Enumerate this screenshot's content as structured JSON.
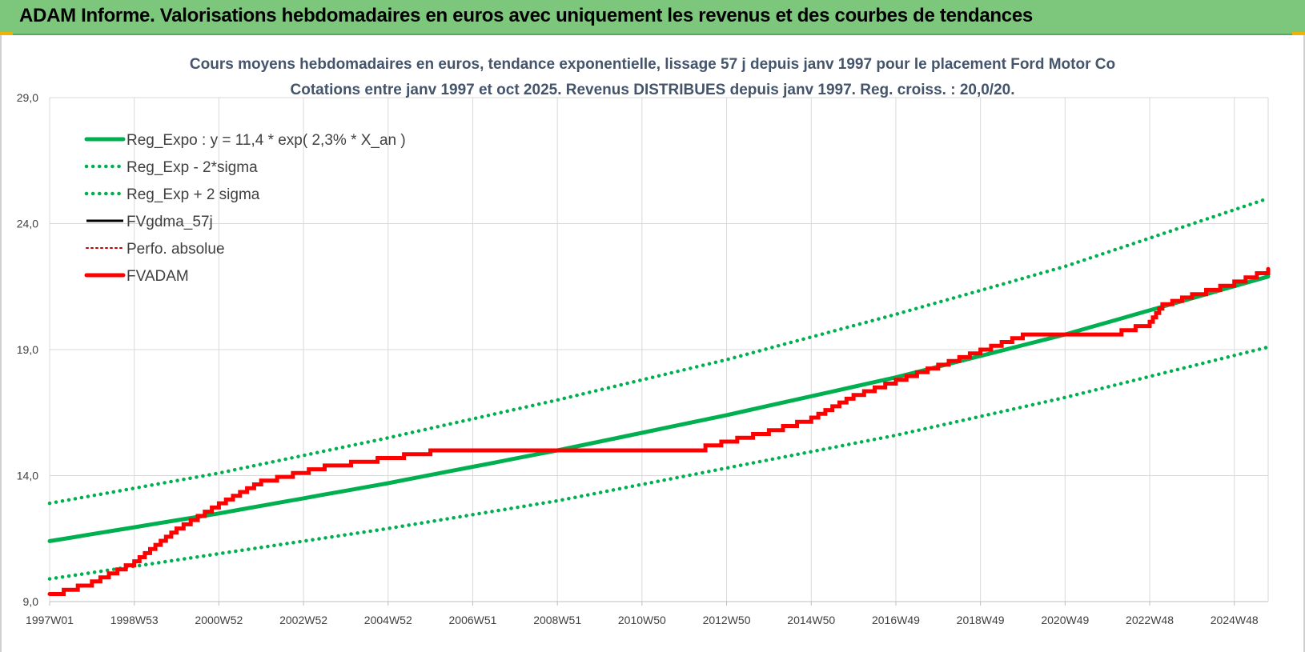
{
  "banner": {
    "title": "ADAM Informe. Valorisations hebdomadaires en euros avec uniquement les revenus et des courbes de tendances"
  },
  "colors": {
    "banner": "#7dc77d",
    "green": "#00b050",
    "red": "#ff0000",
    "black": "#000000",
    "grid": "#d9d9d9"
  },
  "chart_data": {
    "type": "line",
    "title": "Cours moyens hebdomadaires en euros, tendance exponentielle, lissage 57 j depuis janv 1997 pour le placement Ford Motor Co",
    "subtitle": "Cotations entre janv 1997 et oct 2025. Revenus DISTRIBUES depuis janv 1997.  Reg. croiss. : 20,0/20.",
    "xlabel": "",
    "ylabel": "",
    "x_ticks": [
      "1997W01",
      "1998W53",
      "2000W52",
      "2002W52",
      "2004W52",
      "2006W51",
      "2008W51",
      "2010W50",
      "2012W50",
      "2014W50",
      "2016W49",
      "2018W49",
      "2020W49",
      "2022W48",
      "2024W48"
    ],
    "y_ticks": [
      "9,0",
      "14,0",
      "19,0",
      "24,0",
      "29,0"
    ],
    "xlim": [
      1997.0,
      2025.8
    ],
    "ylim": [
      9,
      29
    ],
    "grid": true,
    "legend_position": "top-left",
    "series": [
      {
        "name": "Reg_Expo : y = 11,4 * exp( 2,3% *  X_an )",
        "style": "solid-thick",
        "color": "#00b050",
        "x": [
          1997.0,
          2001.0,
          2005.0,
          2009.0,
          2013.0,
          2017.0,
          2021.0,
          2025.8
        ],
        "y": [
          11.4,
          12.5,
          13.7,
          15.0,
          16.4,
          17.9,
          19.6,
          21.9
        ]
      },
      {
        "name": "Reg_Exp - 2*sigma",
        "style": "dotted",
        "color": "#00b050",
        "x": [
          1997.0,
          2001.0,
          2005.0,
          2009.0,
          2013.0,
          2017.0,
          2021.0,
          2025.8
        ],
        "y": [
          9.9,
          10.9,
          11.9,
          13.0,
          14.3,
          15.6,
          17.1,
          19.1
        ]
      },
      {
        "name": "Reg_Exp + 2 sigma",
        "style": "dotted",
        "color": "#00b050",
        "x": [
          1997.0,
          2001.0,
          2005.0,
          2009.0,
          2013.0,
          2017.0,
          2021.0,
          2025.8
        ],
        "y": [
          12.9,
          14.1,
          15.5,
          17.0,
          18.6,
          20.4,
          22.3,
          25.0
        ]
      },
      {
        "name": "FVgdma_57j",
        "style": "solid",
        "color": "#000000",
        "x": [
          1997.0,
          1998.0,
          1999.0,
          2000.0,
          2001.0,
          2002.0,
          2003.5,
          2006.0,
          2011.0,
          2012.5,
          2014.0,
          2015.0,
          2016.0,
          2017.5,
          2019.0,
          2020.0,
          2022.0,
          2023.0,
          2023.3,
          2024.0,
          2025.0,
          2025.8
        ],
        "y": [
          9.3,
          9.8,
          10.6,
          11.9,
          12.9,
          13.8,
          14.4,
          15.0,
          15.0,
          15.2,
          15.8,
          16.3,
          17.2,
          18.1,
          19.0,
          19.6,
          19.6,
          20.1,
          20.8,
          21.2,
          21.7,
          22.2
        ]
      },
      {
        "name": "Perfo. absolue",
        "style": "dotted",
        "color": "#c00000",
        "x": [
          1997.0,
          1998.0,
          1999.0,
          2000.0,
          2001.0,
          2002.0,
          2003.5,
          2006.0,
          2011.0,
          2012.5,
          2014.0,
          2015.0,
          2016.0,
          2017.5,
          2019.0,
          2020.0,
          2022.0,
          2023.0,
          2023.3,
          2024.0,
          2025.0,
          2025.8
        ],
        "y": [
          9.3,
          9.8,
          10.6,
          11.9,
          12.9,
          13.8,
          14.4,
          15.0,
          15.0,
          15.2,
          15.8,
          16.3,
          17.2,
          18.1,
          19.0,
          19.6,
          19.6,
          20.1,
          20.8,
          21.2,
          21.7,
          22.2
        ]
      },
      {
        "name": "FVADAM",
        "style": "solid-thick",
        "color": "#ff0000",
        "x": [
          1997.0,
          1998.0,
          1999.0,
          2000.0,
          2001.0,
          2002.0,
          2003.5,
          2006.0,
          2011.0,
          2012.5,
          2014.0,
          2015.0,
          2016.0,
          2017.5,
          2019.0,
          2020.0,
          2022.0,
          2023.0,
          2023.3,
          2024.0,
          2025.0,
          2025.8
        ],
        "y": [
          9.3,
          9.8,
          10.6,
          11.9,
          12.9,
          13.8,
          14.4,
          15.0,
          15.0,
          15.2,
          15.8,
          16.3,
          17.2,
          18.1,
          19.0,
          19.6,
          19.6,
          20.1,
          20.8,
          21.2,
          21.7,
          22.2
        ]
      }
    ]
  }
}
